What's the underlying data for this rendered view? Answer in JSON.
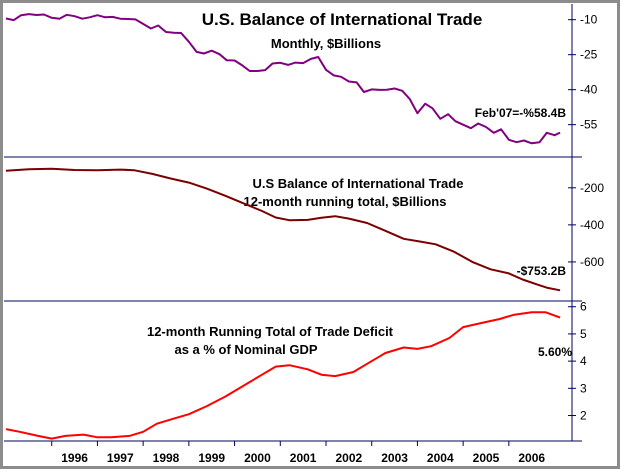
{
  "chart_data": [
    {
      "type": "line",
      "title": "U.S. Balance of International Trade",
      "subtitle": "Monthly, $Billions",
      "annotation": "Feb'07=-%58.4B",
      "ylim": [
        -68,
        -5
      ],
      "yticks": [
        -10,
        -25,
        -40,
        -55
      ],
      "ytick_labels": [
        "-10",
        "-25",
        "-40",
        "-55"
      ],
      "grid": false,
      "color": "#800080",
      "x": [
        1995.0,
        1995.17,
        1995.33,
        1995.5,
        1995.67,
        1995.83,
        1996.0,
        1996.17,
        1996.33,
        1996.5,
        1996.67,
        1996.83,
        1997.0,
        1997.17,
        1997.33,
        1997.5,
        1997.67,
        1997.83,
        1998.0,
        1998.17,
        1998.33,
        1998.5,
        1998.67,
        1998.83,
        1999.0,
        1999.17,
        1999.33,
        1999.5,
        1999.67,
        1999.83,
        2000.0,
        2000.17,
        2000.33,
        2000.5,
        2000.67,
        2000.83,
        2001.0,
        2001.17,
        2001.33,
        2001.5,
        2001.67,
        2001.83,
        2002.0,
        2002.17,
        2002.33,
        2002.5,
        2002.67,
        2002.83,
        2003.0,
        2003.17,
        2003.33,
        2003.5,
        2003.67,
        2003.83,
        2004.0,
        2004.17,
        2004.33,
        2004.5,
        2004.67,
        2004.83,
        2005.0,
        2005.17,
        2005.33,
        2005.5,
        2005.67,
        2005.83,
        2006.0,
        2006.17,
        2006.33,
        2006.5,
        2006.67,
        2006.83,
        2007.0,
        2007.12
      ],
      "y": [
        -9.5,
        -10.2,
        -8.1,
        -7.6,
        -8.0,
        -7.8,
        -9.2,
        -9.6,
        -7.9,
        -8.5,
        -9.6,
        -9.0,
        -8.1,
        -9.0,
        -8.8,
        -9.6,
        -9.7,
        -9.9,
        -11.8,
        -13.8,
        -12.5,
        -15.3,
        -15.6,
        -15.7,
        -19.5,
        -23.8,
        -24.5,
        -23.3,
        -24.8,
        -27.4,
        -27.5,
        -29.6,
        -32.0,
        -32.0,
        -31.6,
        -28.8,
        -28.5,
        -29.4,
        -28.4,
        -28.6,
        -26.8,
        -26.0,
        -31.5,
        -33.9,
        -34.5,
        -36.5,
        -36.9,
        -41.0,
        -39.9,
        -40.1,
        -40.0,
        -39.5,
        -40.5,
        -44.0,
        -50.1,
        -46.0,
        -48.0,
        -52.5,
        -50.5,
        -53.5,
        -55.0,
        -56.5,
        -54.5,
        -56.0,
        -58.5,
        -57.0,
        -61.5,
        -62.5,
        -61.8,
        -63.0,
        -62.5,
        -58.5,
        -59.5,
        -58.4
      ]
    },
    {
      "type": "line",
      "title": "U.S Balance of International Trade",
      "subtitle": "12-month running total, $Billions",
      "annotation": "-$753.2B",
      "ylim": [
        -800,
        -50
      ],
      "yticks": [
        -200,
        -400,
        -600
      ],
      "ytick_labels": [
        "-200",
        "-400",
        "-600"
      ],
      "grid": false,
      "color": "#7a0000",
      "x": [
        1995.0,
        1995.5,
        1996.0,
        1996.5,
        1997.0,
        1997.5,
        1997.8,
        1998.2,
        1998.6,
        1999.0,
        1999.4,
        1999.8,
        2000.2,
        2000.6,
        2000.9,
        2001.2,
        2001.6,
        2001.9,
        2002.2,
        2002.5,
        2002.9,
        2003.3,
        2003.7,
        2004.1,
        2004.4,
        2004.8,
        2005.2,
        2005.6,
        2006.0,
        2006.3,
        2006.6,
        2006.85,
        2007.12
      ],
      "y": [
        -108,
        -100,
        -97,
        -104,
        -105,
        -102,
        -105,
        -125,
        -150,
        -172,
        -205,
        -243,
        -284,
        -325,
        -360,
        -375,
        -373,
        -362,
        -353,
        -366,
        -390,
        -432,
        -475,
        -492,
        -505,
        -545,
        -600,
        -640,
        -662,
        -695,
        -720,
        -740,
        -753.2
      ]
    },
    {
      "type": "line",
      "title": "12-month Running Total of Trade Deficit",
      "subtitle": "as a % of Nominal GDP",
      "annotation": "5.60%",
      "ylim": [
        1.1,
        6.1
      ],
      "yticks": [
        2,
        3,
        4,
        5,
        6
      ],
      "ytick_labels": [
        "2",
        "3",
        "4",
        "5",
        "6"
      ],
      "grid": false,
      "color": "#ff0000",
      "x": [
        1995.0,
        1995.3,
        1995.7,
        1996.0,
        1996.3,
        1996.7,
        1997.0,
        1997.3,
        1997.7,
        1998.0,
        1998.3,
        1998.7,
        1999.0,
        1999.4,
        1999.8,
        2000.2,
        2000.6,
        2000.9,
        2001.2,
        2001.6,
        2001.9,
        2002.2,
        2002.6,
        2002.9,
        2003.3,
        2003.7,
        2004.0,
        2004.3,
        2004.7,
        2005.0,
        2005.4,
        2005.8,
        2006.1,
        2006.5,
        2006.8,
        2007.12
      ],
      "y": [
        1.5,
        1.4,
        1.25,
        1.15,
        1.25,
        1.3,
        1.2,
        1.2,
        1.25,
        1.4,
        1.7,
        1.9,
        2.05,
        2.35,
        2.7,
        3.1,
        3.5,
        3.8,
        3.85,
        3.7,
        3.5,
        3.45,
        3.6,
        3.9,
        4.3,
        4.5,
        4.45,
        4.55,
        4.85,
        5.25,
        5.4,
        5.55,
        5.7,
        5.8,
        5.8,
        5.6
      ]
    }
  ],
  "x_axis": {
    "range": [
      1995.0,
      2007.25
    ],
    "ticks": [
      1996,
      1997,
      1998,
      1999,
      2000,
      2001,
      2002,
      2003,
      2004,
      2005,
      2006
    ],
    "tick_labels": [
      "1996",
      "1997",
      "1998",
      "1999",
      "2000",
      "2001",
      "2002",
      "2003",
      "2004",
      "2005",
      "2006"
    ]
  }
}
